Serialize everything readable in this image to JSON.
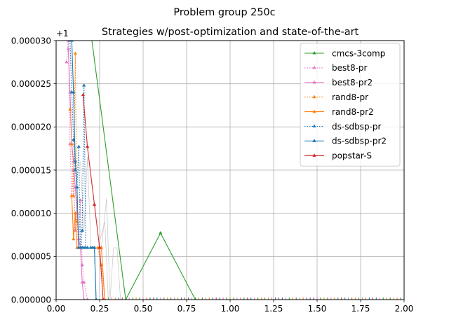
{
  "chart_data": {
    "type": "line",
    "title": "Problem group 250c",
    "subtitle": "Strategies w/post-optimization and state-of-the-art",
    "offset_label": "+1",
    "xlim": [
      0.0,
      2.0
    ],
    "ylim": [
      0.0,
      3e-05
    ],
    "x_ticks": [
      "0.00",
      "0.25",
      "0.50",
      "0.75",
      "1.00",
      "1.25",
      "1.50",
      "1.75",
      "2.00"
    ],
    "y_ticks": [
      "0.000000",
      "0.000005",
      "0.000010",
      "0.000015",
      "0.000020",
      "0.000025",
      "0.000030"
    ],
    "grid": true,
    "legend_position": "top-right",
    "series": [
      {
        "name": "cmcs-3comp",
        "color": "#2ca02c",
        "dash": "solid",
        "points": [
          [
            0.18,
            3.4e-05
          ],
          [
            0.4,
            0.0
          ],
          [
            0.6,
            7.7e-06
          ],
          [
            0.8,
            0.0
          ]
        ]
      },
      {
        "name": "best8-pr",
        "color": "#e377c2",
        "dash": "dotted",
        "points": [
          [
            0.06,
            2.75e-05
          ],
          [
            0.07,
            3e-05
          ],
          [
            0.08,
            1.8e-05
          ],
          [
            0.09,
            1.2e-05
          ],
          [
            0.1,
            1.5e-05
          ],
          [
            0.11,
            8e-06
          ],
          [
            0.12,
            1e-05
          ],
          [
            0.13,
            6e-06
          ],
          [
            0.14,
            1.15e-05
          ],
          [
            0.15,
            4e-06
          ],
          [
            0.16,
            2e-06
          ],
          [
            0.18,
            0.0
          ]
        ]
      },
      {
        "name": "best8-pr2",
        "color": "#e377c2",
        "dash": "solid",
        "points": [
          [
            0.07,
            2.9e-05
          ],
          [
            0.08,
            2.4e-05
          ],
          [
            0.09,
            1.8e-05
          ],
          [
            0.1,
            1.6e-05
          ],
          [
            0.11,
            1.3e-05
          ],
          [
            0.12,
            1e-05
          ],
          [
            0.13,
            7e-06
          ],
          [
            0.14,
            6e-06
          ],
          [
            0.15,
            2e-06
          ],
          [
            0.16,
            0.0
          ]
        ]
      },
      {
        "name": "rand8-pr",
        "color": "#ff7f0e",
        "dash": "dotted",
        "points": [
          [
            0.08,
            2.2e-05
          ],
          [
            0.09,
            1.8e-05
          ],
          [
            0.1,
            1.2e-05
          ],
          [
            0.11,
            2.85e-05
          ],
          [
            0.12,
            9e-06
          ],
          [
            0.13,
            6e-06
          ],
          [
            0.2,
            6e-06
          ],
          [
            0.24,
            6e-06
          ],
          [
            0.26,
            4e-06
          ],
          [
            0.28,
            0.0
          ]
        ]
      },
      {
        "name": "rand8-pr2",
        "color": "#ff7f0e",
        "dash": "solid",
        "points": [
          [
            0.09,
            1.2e-05
          ],
          [
            0.1,
            7e-06
          ],
          [
            0.11,
            1e-05
          ],
          [
            0.12,
            6e-06
          ],
          [
            0.14,
            6e-06
          ],
          [
            0.2,
            6e-06
          ],
          [
            0.26,
            6e-06
          ],
          [
            0.28,
            0.0
          ]
        ]
      },
      {
        "name": "ds-sdbsp-pr",
        "color": "#1f77b4",
        "dash": "dotted",
        "points": [
          [
            0.08,
            3e-05
          ],
          [
            0.09,
            2.4e-05
          ],
          [
            0.1,
            1.85e-05
          ],
          [
            0.11,
            1.5e-05
          ],
          [
            0.12,
            1.3e-05
          ],
          [
            0.13,
            1.77e-05
          ],
          [
            0.14,
            6e-06
          ],
          [
            0.15,
            8e-06
          ],
          [
            0.16,
            2.48e-05
          ],
          [
            0.17,
            6e-06
          ],
          [
            0.2,
            6e-06
          ],
          [
            0.22,
            6e-06
          ],
          [
            0.23,
            0.0
          ]
        ]
      },
      {
        "name": "ds-sdbsp-pr2",
        "color": "#1f77b4",
        "dash": "solid",
        "points": [
          [
            0.09,
            3e-05
          ],
          [
            0.1,
            2.4e-05
          ],
          [
            0.11,
            1.6e-05
          ],
          [
            0.12,
            1.3e-05
          ],
          [
            0.13,
            6e-06
          ],
          [
            0.15,
            6e-06
          ],
          [
            0.16,
            6e-06
          ],
          [
            0.18,
            6e-06
          ],
          [
            0.21,
            6e-06
          ],
          [
            0.22,
            6e-06
          ],
          [
            0.23,
            0.0
          ]
        ]
      },
      {
        "name": "popstar-S",
        "color": "#d62728",
        "dash": "solid",
        "points": [
          [
            0.155,
            2.37e-05
          ],
          [
            0.18,
            1.77e-05
          ],
          [
            0.22,
            1.1e-05
          ],
          [
            0.25,
            6e-06
          ],
          [
            0.27,
            0.0
          ]
        ]
      }
    ],
    "background_traces": {
      "color": "#cccccc",
      "lines": [
        [
          [
            0.14,
            1.6e-05
          ],
          [
            0.16,
            8e-06
          ],
          [
            0.18,
            1.65e-05
          ],
          [
            0.2,
            6e-06
          ],
          [
            0.24,
            6e-06
          ],
          [
            0.28,
            9e-06
          ],
          [
            0.3,
            0.0
          ]
        ],
        [
          [
            0.16,
            6e-06
          ],
          [
            0.2,
            6e-06
          ],
          [
            0.26,
            6e-06
          ],
          [
            0.29,
            1.17e-05
          ],
          [
            0.31,
            0.0
          ],
          [
            0.33,
            6e-06
          ],
          [
            0.35,
            6e-06
          ],
          [
            0.37,
            0.0
          ]
        ]
      ]
    },
    "baseline_ticks": {
      "from": 0.3,
      "to": 1.98,
      "step": 0.02,
      "colors": [
        "#2ca02c",
        "#e377c2",
        "#ff7f0e",
        "#1f77b4",
        "#d62728",
        "#1f77b4",
        "#e377c2",
        "#2ca02c",
        "#ff7f0e"
      ]
    }
  }
}
